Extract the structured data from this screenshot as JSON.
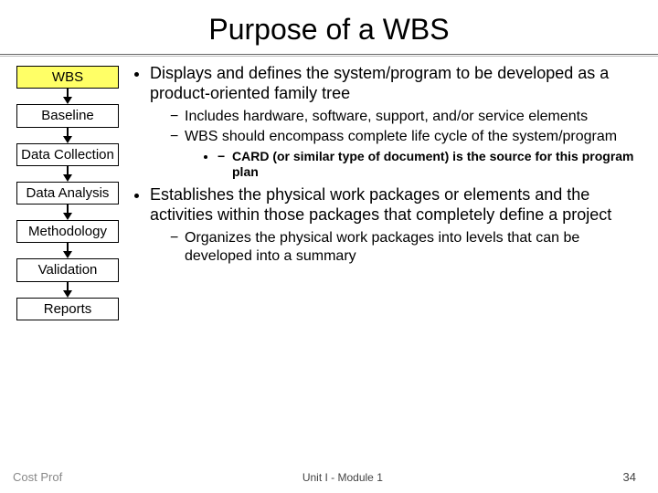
{
  "title": "Purpose of a WBS",
  "flow": {
    "highlight_bg": "#ffff66",
    "boxes": [
      "WBS",
      "Baseline",
      "Data Collection",
      "Data Analysis",
      "Methodology",
      "Validation",
      "Reports"
    ]
  },
  "bullets": {
    "b1_0": "Displays and defines the system/program to be developed as a product-oriented family tree",
    "b2_0": "Includes hardware, software, support, and/or service elements",
    "b2_1": "WBS should encompass complete life cycle of the system/program",
    "b3_0": "CARD (or similar type of document) is the source for this program plan",
    "b1_1": "Establishes the physical work packages or elements and the activities within those packages that completely define a project",
    "b2_2": "Organizes the physical work packages into levels that can be developed into a summary"
  },
  "footer": {
    "brand": "Cost Prof",
    "module": "Unit I - Module 1",
    "page": "34"
  }
}
